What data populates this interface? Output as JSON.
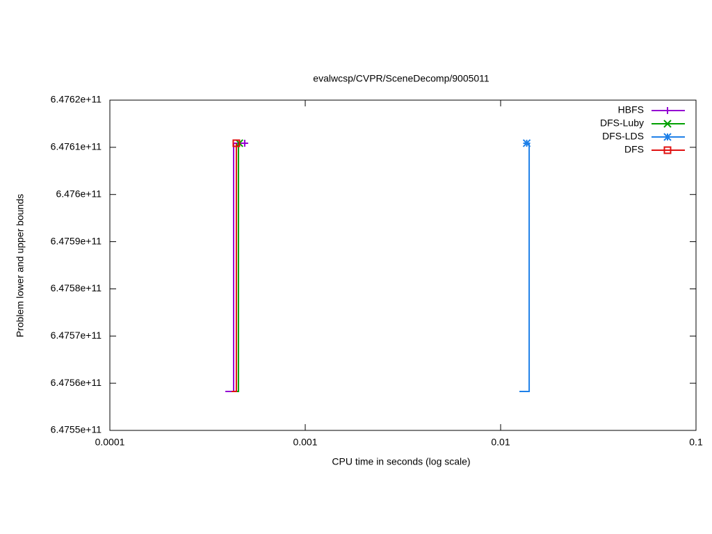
{
  "chart_data": {
    "type": "line",
    "title": "evalwcsp/CVPR/SceneDecomp/9005011",
    "x_label": "CPU time in seconds (log scale)",
    "y_label": "Problem lower and upper bounds",
    "x_log": true,
    "xlim": [
      0.0001,
      0.1
    ],
    "xticks": [
      0.0001,
      0.001,
      0.01,
      0.1
    ],
    "ylim": [
      647550000000,
      647620000000
    ],
    "yticks": [
      {
        "value": 647550000000,
        "label": "6.4755e+11"
      },
      {
        "value": 647560000000,
        "label": "6.4756e+11"
      },
      {
        "value": 647570000000,
        "label": "6.4757e+11"
      },
      {
        "value": 647580000000,
        "label": "6.4758e+11"
      },
      {
        "value": 647590000000,
        "label": "6.4759e+11"
      },
      {
        "value": 647600000000,
        "label": "6.476e+11"
      },
      {
        "value": 647610000000,
        "label": "6.4761e+11"
      },
      {
        "value": 647620000000,
        "label": "6.4762e+11"
      }
    ],
    "legend": "top-right",
    "series": [
      {
        "name": "HBFS",
        "color": "#9400d3",
        "marker": "plus",
        "x": [
          0.00039,
          0.00043,
          0.00043,
          0.00049
        ],
        "values": [
          647558250000,
          647558250000,
          647610870000,
          647610870000
        ]
      },
      {
        "name": "DFS-Luby",
        "color": "#00a000",
        "marker": "cross",
        "x": [
          0.00043,
          0.000455,
          0.000455,
          0.00046
        ],
        "values": [
          647558250000,
          647558250000,
          647610870000,
          647610870000
        ]
      },
      {
        "name": "DFS-LDS",
        "color": "#1e80e8",
        "marker": "star",
        "x": [
          0.01248,
          0.014,
          0.014,
          0.0136
        ],
        "values": [
          647558250000,
          647558250000,
          647610870000,
          647610870000
        ]
      },
      {
        "name": "DFS",
        "color": "#e01010",
        "marker": "square",
        "x": [
          0.00042,
          0.000444,
          0.000444,
          0.000444
        ],
        "values": [
          647558250000,
          647558250000,
          647610870000,
          647610870000
        ]
      }
    ]
  }
}
